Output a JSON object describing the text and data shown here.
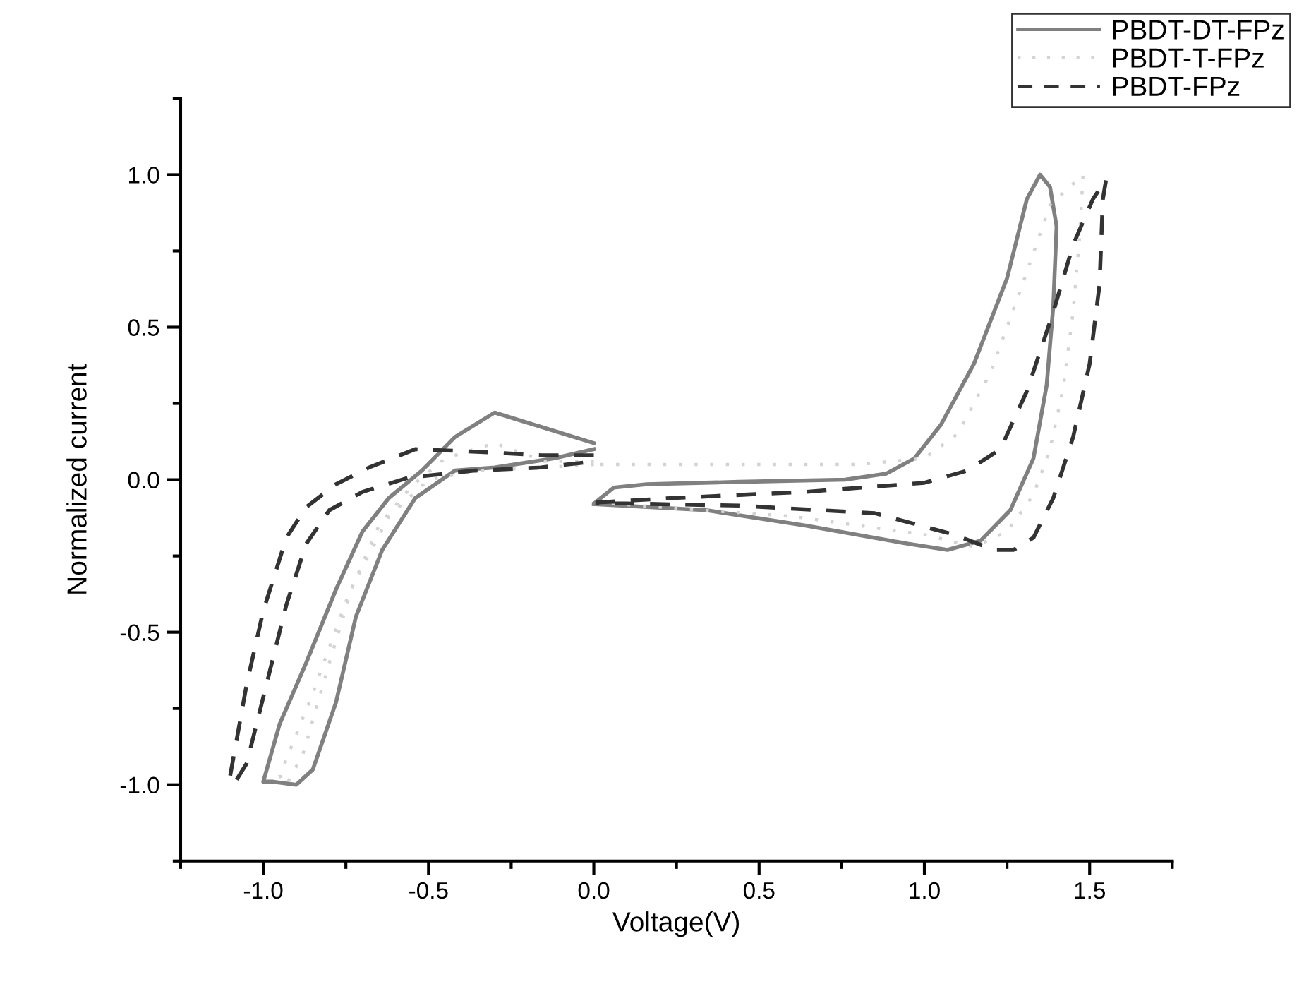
{
  "chart_data": {
    "type": "line",
    "xlabel": "Voltage(V)",
    "ylabel": "Normalized current",
    "xlim": [
      -1.25,
      1.75
    ],
    "ylim": [
      -1.25,
      1.25
    ],
    "xticks": [
      {
        "value": -1,
        "label": "-1.0"
      },
      -0.5,
      {
        "value": 0,
        "label": "0.0"
      },
      0.5,
      {
        "value": 1,
        "label": "1.0"
      },
      1.5
    ],
    "yticks": [
      {
        "value": -1,
        "label": "-1.0"
      },
      -0.5,
      {
        "value": 0,
        "label": "0.0"
      },
      0.5,
      {
        "value": 1,
        "label": "1.0"
      }
    ],
    "grid": false,
    "legend": "top right",
    "marker": "none",
    "series": [
      {
        "name": "PBDT-DT-FPz",
        "color": "#808080",
        "line_style": "solid",
        "x": [
          0,
          -0.3,
          -0.42,
          -0.52,
          -0.62,
          -0.7,
          -0.78,
          -0.87,
          -0.95,
          -1.0,
          -0.97,
          -0.9,
          -0.85,
          -0.78,
          -0.72,
          -0.64,
          -0.54,
          -0.42,
          -0.3,
          -0.12,
          0
        ],
        "values": [
          0.12,
          0.22,
          0.14,
          0.03,
          -0.06,
          -0.17,
          -0.36,
          -0.6,
          -0.8,
          -0.99,
          -0.99,
          -1.0,
          -0.95,
          -0.73,
          -0.45,
          -0.23,
          -0.06,
          0.03,
          0.04,
          0.07,
          0.1
        ]
      },
      {
        "color": "#808080",
        "line_style": "solid",
        "x": [
          0.005,
          0.06,
          0.16,
          0.44,
          0.76,
          0.885,
          0.97,
          1.05,
          1.15,
          1.25,
          1.31,
          1.35,
          1.38,
          1.4,
          1.39,
          1.37,
          1.33,
          1.26,
          1.17,
          1.07,
          0.95,
          0.64,
          0.34,
          0.0
        ],
        "values": [
          -0.074,
          -0.026,
          -0.015,
          -0.007,
          0.0,
          0.02,
          0.07,
          0.18,
          0.38,
          0.66,
          0.92,
          1.0,
          0.96,
          0.83,
          0.57,
          0.31,
          0.07,
          -0.1,
          -0.2,
          -0.23,
          -0.21,
          -0.15,
          -0.1,
          -0.08
        ]
      },
      {
        "name": "PBDT-T-FPz",
        "color": "#d3d3d3",
        "line_style": "dotted",
        "x": [
          0,
          -0.15,
          -0.3,
          -0.45,
          -0.55,
          -0.65,
          -0.75,
          -0.85,
          -0.95,
          -0.93,
          -0.88,
          -0.8,
          -0.73,
          -0.62,
          -0.5,
          -0.35,
          -0.15,
          0
        ],
        "values": [
          0.06,
          0.06,
          0.12,
          0.07,
          -0.02,
          -0.15,
          -0.4,
          -0.7,
          -0.97,
          -1.0,
          -0.9,
          -0.6,
          -0.35,
          -0.12,
          0.0,
          0.03,
          0.04,
          0.05
        ]
      },
      {
        "color": "#d3d3d3",
        "line_style": "dotted",
        "x": [
          0.02,
          0.2,
          0.8,
          1.0,
          1.1,
          1.2,
          1.3,
          1.38,
          1.48,
          1.47,
          1.45,
          1.42,
          1.38,
          1.33,
          1.25,
          1.15,
          1.0,
          0.6,
          0.2,
          0.02
        ],
        "values": [
          0.05,
          0.05,
          0.05,
          0.07,
          0.15,
          0.35,
          0.65,
          0.9,
          1.0,
          0.8,
          0.55,
          0.3,
          0.1,
          -0.05,
          -0.17,
          -0.22,
          -0.18,
          -0.12,
          -0.09,
          -0.075
        ]
      },
      {
        "name": "PBDT-FPz",
        "color": "#333333",
        "line_style": "dashed",
        "x": [
          0,
          -0.16,
          -0.32,
          -0.54,
          -0.68,
          -0.78,
          -0.87,
          -0.93,
          -1.0,
          -1.05,
          -1.1,
          -1.09,
          -1.05,
          -0.99,
          -0.93,
          -0.87,
          -0.8,
          -0.7,
          -0.56,
          -0.36,
          -0.16,
          0
        ],
        "values": [
          0.08,
          0.08,
          0.09,
          0.1,
          0.04,
          -0.015,
          -0.09,
          -0.19,
          -0.43,
          -0.67,
          -0.97,
          -1.0,
          -0.93,
          -0.67,
          -0.41,
          -0.21,
          -0.1,
          -0.04,
          0.007,
          0.03,
          0.04,
          0.06
        ]
      },
      {
        "color": "#333333",
        "line_style": "dashed",
        "x": [
          0.005,
          0.24,
          0.64,
          1.0,
          1.13,
          1.23,
          1.31,
          1.39,
          1.45,
          1.51,
          1.55,
          1.54,
          1.53,
          1.5,
          1.45,
          1.39,
          1.33,
          1.27,
          1.21,
          1.09,
          0.85,
          0.44,
          0.005
        ],
        "values": [
          -0.075,
          -0.06,
          -0.04,
          -0.01,
          0.03,
          0.1,
          0.29,
          0.55,
          0.77,
          0.92,
          0.985,
          0.92,
          0.64,
          0.38,
          0.14,
          -0.06,
          -0.19,
          -0.23,
          -0.23,
          -0.18,
          -0.11,
          -0.085,
          -0.076
        ]
      }
    ]
  }
}
